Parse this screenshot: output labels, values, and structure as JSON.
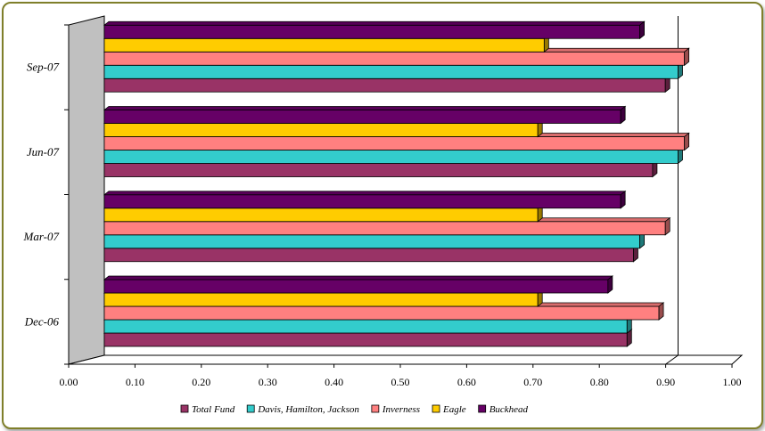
{
  "chart_data": {
    "type": "bar",
    "orientation": "horizontal",
    "three_d": true,
    "categories": [
      "Dec-06",
      "Mar-07",
      "Jun-07",
      "Sep-07"
    ],
    "series": [
      {
        "name": "Total Fund",
        "color": "#993366",
        "values": [
          0.82,
          0.83,
          0.86,
          0.88
        ]
      },
      {
        "name": "Davis, Hamilton, Jackson",
        "color": "#33cccc",
        "values": [
          0.82,
          0.84,
          0.9,
          0.9
        ]
      },
      {
        "name": "Inverness",
        "color": "#ff8080",
        "values": [
          0.87,
          0.88,
          0.91,
          0.91
        ]
      },
      {
        "name": "Eagle",
        "color": "#ffcc00",
        "values": [
          0.68,
          0.68,
          0.68,
          0.69
        ]
      },
      {
        "name": "Buckhead",
        "color": "#660066",
        "values": [
          0.79,
          0.81,
          0.81,
          0.84
        ]
      }
    ],
    "xlim": [
      0,
      1.0
    ],
    "xticks": [
      "0.00",
      "0.10",
      "0.20",
      "0.30",
      "0.40",
      "0.50",
      "0.60",
      "0.70",
      "0.80",
      "0.90",
      "1.00"
    ],
    "grid": "vertical gridline at 0.90 only",
    "legend_position": "bottom"
  }
}
